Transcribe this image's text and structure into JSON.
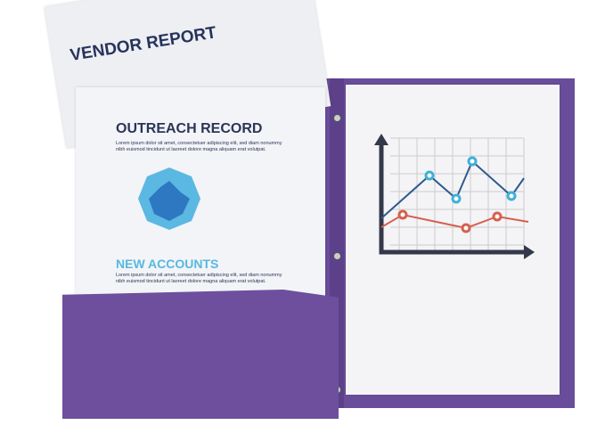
{
  "vendor_report": {
    "title": "VENDOR REPORT"
  },
  "outreach_record": {
    "title": "OUTREACH RECORD",
    "body": "Lorem ipsum dolor sit amet, consectetuer adipiscing elit, sed diam nonummy nibh euismod tincidunt ut laoreet dolore magna aliquam erat volutpat."
  },
  "new_accounts": {
    "title": "NEW ACCOUNTS",
    "body": "Lorem ipsum dolor sit amet, consectetuer adipiscing elit, sed diam nonummy nibh euismod tincidunt ut laoreet dolore magna aliquam erat volutpat."
  },
  "colors": {
    "folder": "#6a4d9a",
    "navy": "#27335c",
    "accent_blue": "#56b8e0",
    "chart_red": "#d6604d",
    "chart_blue": "#2f5a8c"
  }
}
